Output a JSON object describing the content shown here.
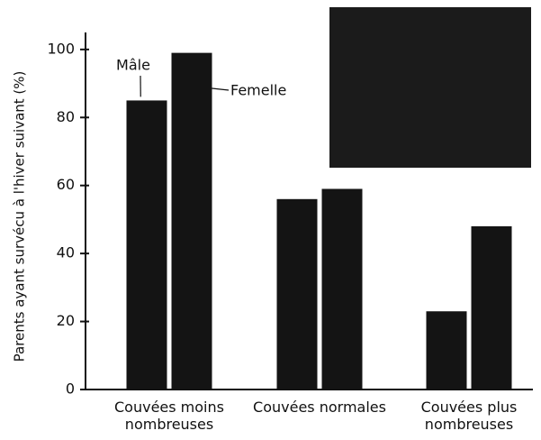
{
  "chart_data": {
    "type": "bar",
    "y_label": "Parents ayant survécu à l'hiver suivant (%)",
    "categories": [
      "Couvées moins nombreuses",
      "Couvées normales",
      "Couvées plus nombreuses"
    ],
    "series": [
      {
        "name": "Mâle",
        "color": "#141414",
        "values": [
          85,
          56,
          23
        ]
      },
      {
        "name": "Femelle",
        "color": "#141414",
        "values": [
          99,
          59,
          48
        ]
      }
    ],
    "ylim": [
      0,
      105
    ],
    "yticks": [
      0,
      20,
      40,
      60,
      80,
      100
    ],
    "grid": false
  }
}
